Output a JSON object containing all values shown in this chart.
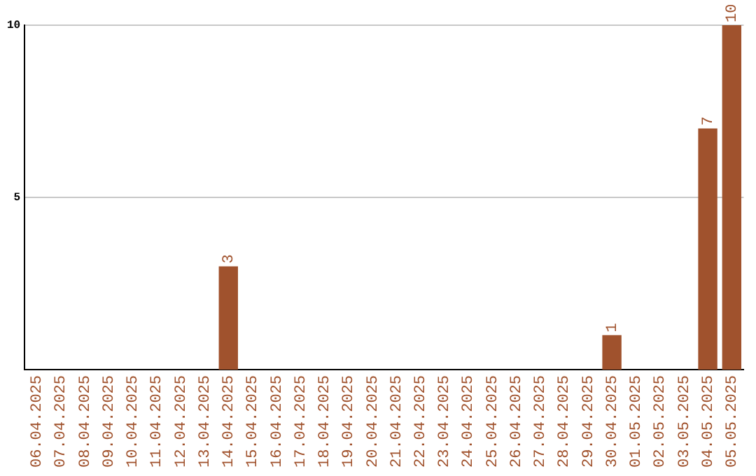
{
  "chart_data": {
    "type": "bar",
    "categories": [
      "06.04.2025",
      "07.04.2025",
      "08.04.2025",
      "09.04.2025",
      "10.04.2025",
      "11.04.2025",
      "12.04.2025",
      "13.04.2025",
      "14.04.2025",
      "15.04.2025",
      "16.04.2025",
      "17.04.2025",
      "18.04.2025",
      "19.04.2025",
      "20.04.2025",
      "21.04.2025",
      "22.04.2025",
      "23.04.2025",
      "24.04.2025",
      "25.04.2025",
      "26.04.2025",
      "27.04.2025",
      "28.04.2025",
      "29.04.2025",
      "30.04.2025",
      "01.05.2025",
      "02.05.2025",
      "03.05.2025",
      "04.05.2025",
      "05.05.2025"
    ],
    "values": [
      0,
      0,
      0,
      0,
      0,
      0,
      0,
      0,
      3,
      0,
      0,
      0,
      0,
      0,
      0,
      0,
      0,
      0,
      0,
      0,
      0,
      0,
      0,
      0,
      1,
      0,
      0,
      0,
      7,
      10
    ],
    "value_labels": [
      null,
      null,
      null,
      null,
      null,
      null,
      null,
      null,
      "3",
      null,
      null,
      null,
      null,
      null,
      null,
      null,
      null,
      null,
      null,
      null,
      null,
      null,
      null,
      null,
      "1",
      null,
      null,
      null,
      "7",
      "10"
    ],
    "color": "#a0522d",
    "ylim": [
      0,
      10
    ],
    "yticks": [
      5,
      10
    ],
    "grid": "y"
  }
}
